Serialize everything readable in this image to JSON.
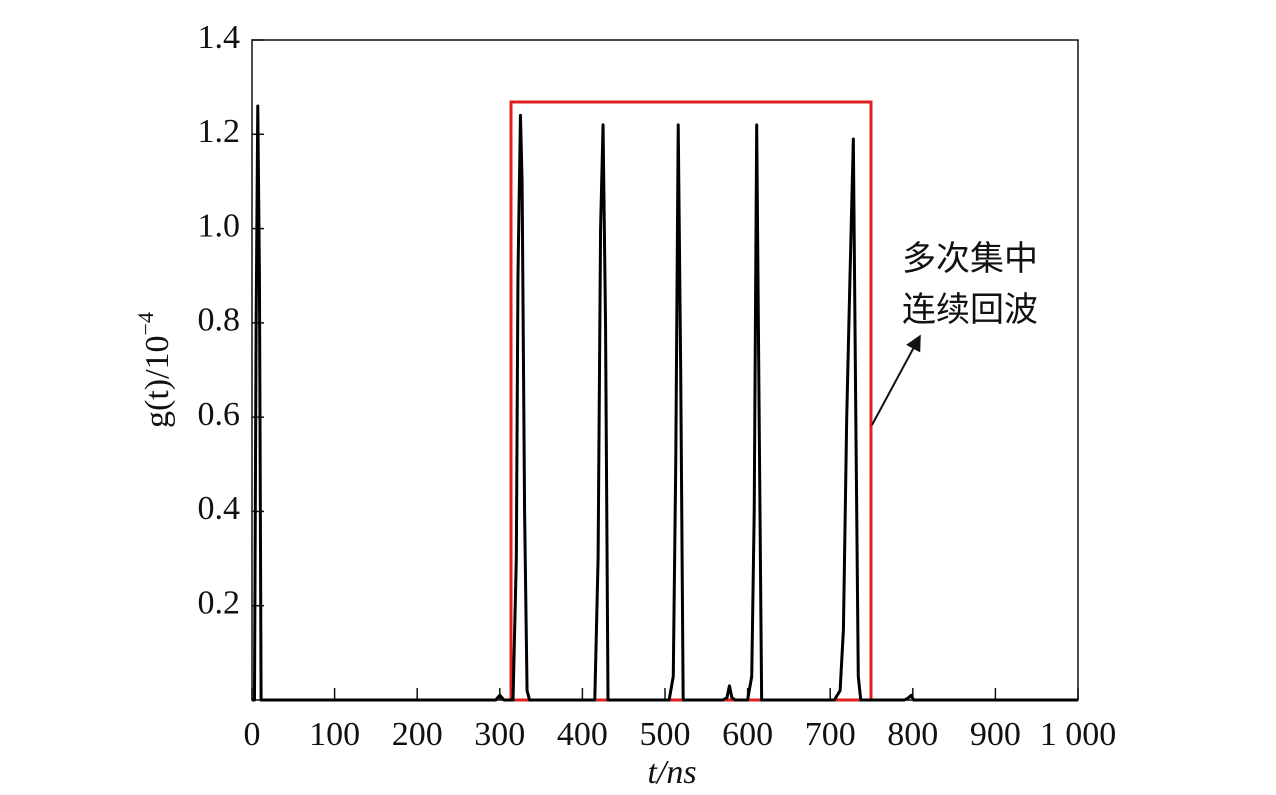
{
  "chart_data": {
    "type": "line",
    "xlabel": "t/ns",
    "ylabel": "g(t)/10",
    "ylabel_exponent": "−4",
    "annotation": [
      "多次集中",
      "连续回波"
    ],
    "color": "#000000",
    "x": [
      0,
      3,
      5,
      7,
      9,
      11,
      295,
      300,
      305,
      316,
      320,
      322,
      325,
      327,
      330,
      333,
      336,
      415,
      419,
      422,
      425,
      428,
      431,
      505,
      510,
      513,
      516,
      519,
      522,
      570,
      575,
      578,
      581,
      585,
      600,
      605,
      608,
      611,
      614,
      617,
      705,
      712,
      716,
      720,
      724,
      728,
      731,
      734,
      737,
      790,
      795,
      798,
      801,
      1000
    ],
    "values": [
      0,
      0,
      0.8,
      1.26,
      0.9,
      0,
      0,
      0.01,
      0,
      0,
      0.3,
      0.9,
      1.24,
      1.1,
      0.4,
      0.02,
      0,
      0,
      0.3,
      1.0,
      1.22,
      0.8,
      0,
      0,
      0.05,
      0.5,
      1.22,
      0.7,
      0,
      0,
      0.005,
      0.03,
      0.005,
      0,
      0,
      0.05,
      0.4,
      1.22,
      0.6,
      0,
      0,
      0.02,
      0.15,
      0.6,
      0.9,
      1.19,
      0.6,
      0.05,
      0,
      0,
      0.005,
      0.01,
      0,
      0
    ],
    "xlim": [
      0,
      1000
    ],
    "xticks": [
      0,
      100,
      200,
      300,
      400,
      500,
      600,
      700,
      800,
      900,
      {
        "value": 1000,
        "label": "1 000"
      }
    ],
    "ylim": [
      0,
      1.4
    ],
    "yticks": [
      0.2,
      0.4,
      0.6,
      0.8,
      {
        "value": 1,
        "label": "1.0"
      },
      1.2,
      1.4
    ]
  }
}
